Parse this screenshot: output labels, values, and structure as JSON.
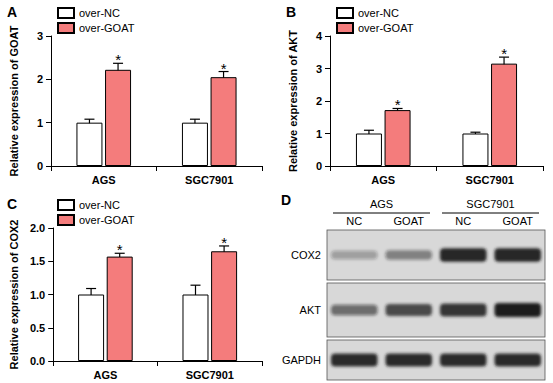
{
  "chart_data": [
    {
      "type": "bar",
      "title": "A",
      "y_label": "Relative expression of GOAT",
      "categories": [
        "AGS",
        "SGC7901"
      ],
      "series": [
        {
          "name": "over-NC",
          "color": "#ffffff",
          "values": [
            1.0,
            1.0
          ],
          "errors": [
            0.08,
            0.08
          ]
        },
        {
          "name": "over-GOAT",
          "color": "#f47c7c",
          "values": [
            2.22,
            2.05
          ],
          "errors": [
            0.15,
            0.13
          ]
        }
      ],
      "annotations": [
        {
          "text": "*",
          "series": "over-GOAT",
          "category": "AGS"
        },
        {
          "text": "*",
          "series": "over-GOAT",
          "category": "SGC7901"
        }
      ],
      "ylim": [
        0,
        3
      ],
      "yticks": [
        0,
        1,
        2,
        3
      ],
      "grid": false,
      "legend": "upper left"
    },
    {
      "type": "bar",
      "title": "B",
      "y_label": "Relative expression of AKT",
      "categories": [
        "AGS",
        "SGC7901"
      ],
      "series": [
        {
          "name": "over-NC",
          "color": "#ffffff",
          "values": [
            1.0,
            1.0
          ],
          "errors": [
            0.1,
            0.04
          ]
        },
        {
          "name": "over-GOAT",
          "color": "#f47c7c",
          "values": [
            1.72,
            3.15
          ],
          "errors": [
            0.05,
            0.2
          ]
        }
      ],
      "annotations": [
        {
          "text": "*",
          "series": "over-GOAT",
          "category": "AGS"
        },
        {
          "text": "*",
          "series": "over-GOAT",
          "category": "SGC7901"
        }
      ],
      "ylim": [
        0,
        4
      ],
      "yticks": [
        0,
        1,
        2,
        3,
        4
      ],
      "grid": false,
      "legend": "upper left"
    },
    {
      "type": "bar",
      "title": "C",
      "y_label": "Relative expression of COX2",
      "categories": [
        "AGS",
        "SGC7901"
      ],
      "series": [
        {
          "name": "over-NC",
          "color": "#ffffff",
          "values": [
            1.0,
            1.0
          ],
          "errors": [
            0.09,
            0.14
          ]
        },
        {
          "name": "over-GOAT",
          "color": "#f47c7c",
          "values": [
            1.57,
            1.65
          ],
          "errors": [
            0.05,
            0.08
          ]
        }
      ],
      "annotations": [
        {
          "text": "*",
          "series": "over-GOAT",
          "category": "AGS"
        },
        {
          "text": "*",
          "series": "over-GOAT",
          "category": "SGC7901"
        }
      ],
      "ylim": [
        0,
        2
      ],
      "yticks": [
        {
          "value": 0,
          "label": "0.0"
        },
        0.5,
        {
          "value": 1,
          "label": "1.0"
        },
        1.5,
        {
          "value": 2,
          "label": "2.0"
        }
      ],
      "grid": false,
      "legend": "upper left"
    }
  ],
  "blot": {
    "title": "D",
    "cell_lines": [
      "AGS",
      "SGC7901"
    ],
    "lanes": [
      "NC",
      "GOAT",
      "NC",
      "GOAT"
    ],
    "rows": [
      {
        "name": "COX2",
        "intensity": [
          0.3,
          0.45,
          0.95,
          0.95
        ]
      },
      {
        "name": "AKT",
        "intensity": [
          0.55,
          0.75,
          0.85,
          1.0
        ]
      },
      {
        "name": "GAPDH",
        "intensity": [
          0.9,
          0.9,
          0.9,
          0.9
        ]
      }
    ]
  }
}
